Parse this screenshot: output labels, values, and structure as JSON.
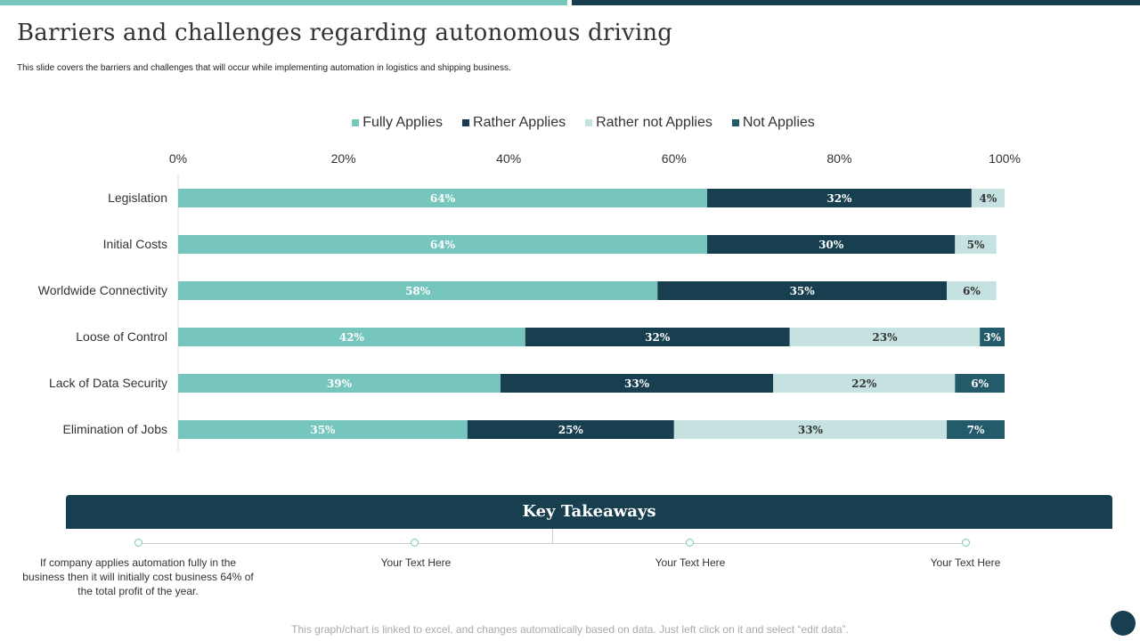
{
  "title": "Barriers and challenges regarding autonomous driving",
  "subtitle": "This slide covers the barriers and challenges that will occur while implementing automation in logistics and shipping business.",
  "chart_data": {
    "type": "bar",
    "orientation": "horizontal",
    "stacked": true,
    "categories": [
      "Legislation",
      "Initial Costs",
      "Worldwide Connectivity",
      "Loose of Control",
      "Lack of Data Security",
      "Elimination of Jobs"
    ],
    "series": [
      {
        "name": "Fully Applies",
        "color": "#76c6bd",
        "values": [
          64,
          64,
          58,
          42,
          39,
          35
        ]
      },
      {
        "name": "Rather Applies",
        "color": "#173f4f",
        "values": [
          32,
          30,
          35,
          32,
          33,
          25
        ]
      },
      {
        "name": "Rather not Applies",
        "color": "#c5e2e1",
        "values": [
          4,
          5,
          6,
          23,
          22,
          33
        ]
      },
      {
        "name": "Not Applies",
        "color": "#235b6b",
        "values": [
          0,
          0,
          0,
          3,
          6,
          7
        ]
      }
    ],
    "xticks": [
      "0%",
      "20%",
      "40%",
      "60%",
      "80%",
      "100%"
    ],
    "xlim": [
      0,
      100
    ],
    "legend": "top",
    "grid": false
  },
  "takeaways": {
    "heading": "Key Takeaways",
    "items": [
      "If company applies automation fully in the business then it will initially cost business 64% of the total profit  of the year.",
      "Your Text Here",
      "Your Text Here",
      "Your Text Here"
    ]
  },
  "footer": "This graph/chart is linked to excel, and changes automatically based on data. Just left click on it and select “edit data”."
}
